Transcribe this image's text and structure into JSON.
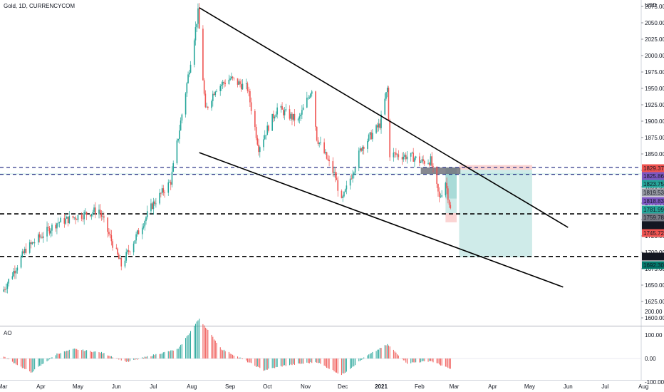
{
  "header": {
    "symbol": "Gold, 1D, CURRENCYCOM"
  },
  "indicator": {
    "name": "AO"
  },
  "chart_data": {
    "type": "candlestick",
    "symbol": "Gold",
    "interval": "1D",
    "source": "CURRENCYCOM",
    "currency_label": "USD",
    "time_axis_labels": [
      "Mar",
      "Apr",
      "May",
      "Jun",
      "Jul",
      "Aug",
      "Sep",
      "Oct",
      "Nov",
      "Dec",
      "2021",
      "Feb",
      "Mar",
      "Apr",
      "May",
      "Jun",
      "Jul",
      "Aug"
    ],
    "price_axis_ticks": [
      2100,
      2075,
      2050,
      2025,
      2000,
      1975,
      1950,
      1925,
      1900,
      1875,
      1850,
      1825,
      1800,
      1775,
      1750,
      1725,
      1700,
      1675,
      1650,
      1625,
      1600
    ],
    "ao_axis_ticks": [
      "200.00",
      "100.00",
      "0.00",
      "-100.00"
    ],
    "price_labels": [
      {
        "value": "1829.37",
        "color": "#ef5350"
      },
      {
        "value": "1825.86",
        "color": "#7e57c2"
      },
      {
        "value": "1823.75",
        "color": "#26a69a"
      },
      {
        "value": "1819.53",
        "color": "#9598a1"
      },
      {
        "value": "1818.83",
        "color": "#7e57c2"
      },
      {
        "value": "1781.99",
        "color": "#26a69a"
      },
      {
        "value": "1759.78",
        "color": "#787b86"
      },
      {
        "value": "1758.67",
        "color": "#131722"
      },
      {
        "value": "1745.72",
        "color": "#ef5350"
      },
      {
        "value": "1693.72",
        "color": "#131722"
      },
      {
        "value": "1692.30",
        "color": "#00796b"
      }
    ],
    "horizontal_levels": [
      {
        "price": 1829.37,
        "style": "dashed",
        "color": "#1a237e"
      },
      {
        "price": 1818.83,
        "style": "dashed",
        "color": "#1a237e"
      },
      {
        "price": 1758.67,
        "style": "dashed",
        "color": "#000000"
      },
      {
        "price": 1693.72,
        "style": "dashed",
        "color": "#000000"
      }
    ],
    "trend_lines": [
      {
        "from": {
          "date": "2020-08-07",
          "price": 2073
        },
        "to": {
          "date": "2021-06-01",
          "price": 1738
        }
      },
      {
        "from": {
          "date": "2020-08-07",
          "price": 1852
        },
        "to": {
          "date": "2021-05-28",
          "price": 1647
        }
      }
    ],
    "positions": [
      {
        "entry": 1819.53,
        "stop": 1829.37,
        "target": 1759.78,
        "start": "2021-02-22",
        "end": "2021-03-03"
      },
      {
        "entry": 1829.37,
        "stop": 1829.37,
        "target": 1692.3,
        "start": "2021-03-05",
        "end": "2021-05-03"
      }
    ],
    "key_points": [
      {
        "date": "2020-03-01",
        "price": 1640
      },
      {
        "date": "2020-03-20",
        "price": 1705
      },
      {
        "date": "2020-04-14",
        "price": 1745
      },
      {
        "date": "2020-05-18",
        "price": 1765
      },
      {
        "date": "2020-06-05",
        "price": 1680
      },
      {
        "date": "2020-06-30",
        "price": 1772
      },
      {
        "date": "2020-07-15",
        "price": 1808
      },
      {
        "date": "2020-07-27",
        "price": 1945
      },
      {
        "date": "2020-08-06",
        "price": 2065
      },
      {
        "date": "2020-08-12",
        "price": 1915
      },
      {
        "date": "2020-08-20",
        "price": 1950
      },
      {
        "date": "2020-09-01",
        "price": 1965
      },
      {
        "date": "2020-09-15",
        "price": 1950
      },
      {
        "date": "2020-09-24",
        "price": 1860
      },
      {
        "date": "2020-10-09",
        "price": 1920
      },
      {
        "date": "2020-10-26",
        "price": 1900
      },
      {
        "date": "2020-11-06",
        "price": 1950
      },
      {
        "date": "2020-11-10",
        "price": 1875
      },
      {
        "date": "2020-11-25",
        "price": 1815
      },
      {
        "date": "2020-11-30",
        "price": 1776
      },
      {
        "date": "2020-12-16",
        "price": 1860
      },
      {
        "date": "2020-12-31",
        "price": 1895
      },
      {
        "date": "2021-01-06",
        "price": 1950
      },
      {
        "date": "2021-01-08",
        "price": 1850
      },
      {
        "date": "2021-01-27",
        "price": 1845
      },
      {
        "date": "2021-02-02",
        "price": 1838
      },
      {
        "date": "2021-02-10",
        "price": 1840
      },
      {
        "date": "2021-02-17",
        "price": 1782
      },
      {
        "date": "2021-02-22",
        "price": 1808
      },
      {
        "date": "2021-02-26",
        "price": 1765
      }
    ],
    "ao_points": [
      {
        "date": "2020-03-01",
        "value": 10
      },
      {
        "date": "2020-03-24",
        "value": -60
      },
      {
        "date": "2020-04-14",
        "value": 20
      },
      {
        "date": "2020-04-28",
        "value": 40
      },
      {
        "date": "2020-05-20",
        "value": 25
      },
      {
        "date": "2020-06-10",
        "value": -15
      },
      {
        "date": "2020-07-01",
        "value": 15
      },
      {
        "date": "2020-07-21",
        "value": 40
      },
      {
        "date": "2020-08-07",
        "value": 170
      },
      {
        "date": "2020-08-25",
        "value": 40
      },
      {
        "date": "2020-09-10",
        "value": 0
      },
      {
        "date": "2020-09-28",
        "value": -50
      },
      {
        "date": "2020-10-15",
        "value": -30
      },
      {
        "date": "2020-11-10",
        "value": -15
      },
      {
        "date": "2020-11-30",
        "value": -70
      },
      {
        "date": "2020-12-20",
        "value": 10
      },
      {
        "date": "2021-01-06",
        "value": 60
      },
      {
        "date": "2021-01-22",
        "value": -20
      },
      {
        "date": "2021-02-10",
        "value": -10
      },
      {
        "date": "2021-02-26",
        "value": -45
      }
    ]
  }
}
